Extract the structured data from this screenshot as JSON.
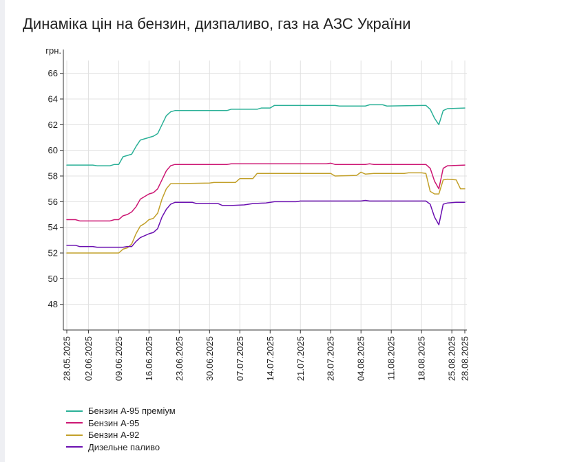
{
  "title": "Динаміка цін на бензин, дизпаливо, газ на АЗС України",
  "chart_data": {
    "type": "line",
    "title": "Динаміка цін на бензин, дизпаливо, газ на АЗС України",
    "ylabel": "грн.",
    "xlabel": "",
    "ylim": [
      46,
      67
    ],
    "yticks": [
      48,
      50,
      52,
      54,
      56,
      58,
      60,
      62,
      64,
      66
    ],
    "grid": true,
    "legend_position": "bottom-left",
    "x_start": "28.05.2025",
    "x_end": "28.08.2025",
    "x_tick_labels": [
      "28.05.2025",
      "02.06.2025",
      "09.06.2025",
      "16.06.2025",
      "23.06.2025",
      "30.06.2025",
      "07.07.2025",
      "14.07.2025",
      "21.07.2025",
      "28.07.2025",
      "04.08.2025",
      "11.08.2025",
      "18.08.2025",
      "25.08.2025",
      "28.08.2025"
    ],
    "series": [
      {
        "name": "Бензин А-95 преміум",
        "color": "#2ab097",
        "points": [
          [
            "28.05.2025",
            58.85
          ],
          [
            "03.06.2025",
            58.85
          ],
          [
            "04.06.2025",
            58.8
          ],
          [
            "07.06.2025",
            58.8
          ],
          [
            "08.06.2025",
            58.9
          ],
          [
            "09.06.2025",
            58.9
          ],
          [
            "10.06.2025",
            59.5
          ],
          [
            "11.06.2025",
            59.6
          ],
          [
            "12.06.2025",
            59.7
          ],
          [
            "13.06.2025",
            60.3
          ],
          [
            "14.06.2025",
            60.8
          ],
          [
            "15.06.2025",
            60.9
          ],
          [
            "16.06.2025",
            61.0
          ],
          [
            "17.06.2025",
            61.1
          ],
          [
            "18.06.2025",
            61.3
          ],
          [
            "19.06.2025",
            62.0
          ],
          [
            "20.06.2025",
            62.7
          ],
          [
            "21.06.2025",
            63.0
          ],
          [
            "22.06.2025",
            63.1
          ],
          [
            "04.07.2025",
            63.1
          ],
          [
            "05.07.2025",
            63.2
          ],
          [
            "11.07.2025",
            63.2
          ],
          [
            "12.07.2025",
            63.3
          ],
          [
            "14.07.2025",
            63.3
          ],
          [
            "15.07.2025",
            63.5
          ],
          [
            "29.07.2025",
            63.5
          ],
          [
            "30.07.2025",
            63.45
          ],
          [
            "05.08.2025",
            63.45
          ],
          [
            "06.08.2025",
            63.55
          ],
          [
            "09.08.2025",
            63.55
          ],
          [
            "10.08.2025",
            63.45
          ],
          [
            "18.08.2025",
            63.5
          ],
          [
            "19.08.2025",
            63.5
          ],
          [
            "20.08.2025",
            63.2
          ],
          [
            "21.08.2025",
            62.5
          ],
          [
            "22.08.2025",
            62.0
          ],
          [
            "23.08.2025",
            63.1
          ],
          [
            "24.08.2025",
            63.25
          ],
          [
            "28.08.2025",
            63.3
          ]
        ]
      },
      {
        "name": "Бензин А-95",
        "color": "#cc1673",
        "points": [
          [
            "28.05.2025",
            54.6
          ],
          [
            "30.05.2025",
            54.6
          ],
          [
            "31.05.2025",
            54.5
          ],
          [
            "07.06.2025",
            54.5
          ],
          [
            "08.06.2025",
            54.6
          ],
          [
            "09.06.2025",
            54.6
          ],
          [
            "10.06.2025",
            54.9
          ],
          [
            "11.06.2025",
            55.0
          ],
          [
            "12.06.2025",
            55.2
          ],
          [
            "13.06.2025",
            55.6
          ],
          [
            "14.06.2025",
            56.2
          ],
          [
            "15.06.2025",
            56.4
          ],
          [
            "16.06.2025",
            56.6
          ],
          [
            "17.06.2025",
            56.7
          ],
          [
            "18.06.2025",
            57.0
          ],
          [
            "19.06.2025",
            57.7
          ],
          [
            "20.06.2025",
            58.4
          ],
          [
            "21.06.2025",
            58.8
          ],
          [
            "22.06.2025",
            58.9
          ],
          [
            "04.07.2025",
            58.9
          ],
          [
            "05.07.2025",
            58.95
          ],
          [
            "27.07.2025",
            58.95
          ],
          [
            "28.07.2025",
            59.0
          ],
          [
            "29.07.2025",
            58.9
          ],
          [
            "05.08.2025",
            58.9
          ],
          [
            "06.08.2025",
            58.95
          ],
          [
            "07.08.2025",
            58.9
          ],
          [
            "15.08.2025",
            58.9
          ],
          [
            "16.08.2025",
            58.9
          ],
          [
            "19.08.2025",
            58.9
          ],
          [
            "20.08.2025",
            58.6
          ],
          [
            "21.08.2025",
            57.6
          ],
          [
            "22.08.2025",
            57.0
          ],
          [
            "23.08.2025",
            58.6
          ],
          [
            "24.08.2025",
            58.8
          ],
          [
            "28.08.2025",
            58.85
          ]
        ]
      },
      {
        "name": "Бензин А-92",
        "color": "#c2a02a",
        "points": [
          [
            "28.05.2025",
            52.0
          ],
          [
            "08.06.2025",
            52.0
          ],
          [
            "09.06.2025",
            52.0
          ],
          [
            "10.06.2025",
            52.3
          ],
          [
            "11.06.2025",
            52.4
          ],
          [
            "12.06.2025",
            52.7
          ],
          [
            "13.06.2025",
            53.5
          ],
          [
            "14.06.2025",
            54.1
          ],
          [
            "15.06.2025",
            54.3
          ],
          [
            "16.06.2025",
            54.6
          ],
          [
            "17.06.2025",
            54.7
          ],
          [
            "18.06.2025",
            55.1
          ],
          [
            "19.06.2025",
            56.2
          ],
          [
            "20.06.2025",
            57.0
          ],
          [
            "21.06.2025",
            57.4
          ],
          [
            "30.06.2025",
            57.45
          ],
          [
            "01.07.2025",
            57.5
          ],
          [
            "06.07.2025",
            57.5
          ],
          [
            "07.07.2025",
            57.8
          ],
          [
            "10.07.2025",
            57.8
          ],
          [
            "11.07.2025",
            58.2
          ],
          [
            "28.07.2025",
            58.2
          ],
          [
            "29.07.2025",
            58.0
          ],
          [
            "03.08.2025",
            58.05
          ],
          [
            "04.08.2025",
            58.3
          ],
          [
            "05.08.2025",
            58.15
          ],
          [
            "07.08.2025",
            58.2
          ],
          [
            "08.08.2025",
            58.2
          ],
          [
            "14.08.2025",
            58.2
          ],
          [
            "15.08.2025",
            58.25
          ],
          [
            "18.08.2025",
            58.25
          ],
          [
            "19.08.2025",
            58.2
          ],
          [
            "20.08.2025",
            56.8
          ],
          [
            "21.08.2025",
            56.6
          ],
          [
            "22.08.2025",
            56.6
          ],
          [
            "23.08.2025",
            57.7
          ],
          [
            "24.08.2025",
            57.75
          ],
          [
            "26.08.2025",
            57.7
          ],
          [
            "27.08.2025",
            57.0
          ],
          [
            "28.08.2025",
            57.0
          ]
        ]
      },
      {
        "name": "Дизельне паливо",
        "color": "#6a0fb0",
        "points": [
          [
            "28.05.2025",
            52.6
          ],
          [
            "30.05.2025",
            52.6
          ],
          [
            "31.05.2025",
            52.5
          ],
          [
            "03.06.2025",
            52.5
          ],
          [
            "04.06.2025",
            52.45
          ],
          [
            "09.06.2025",
            52.45
          ],
          [
            "10.06.2025",
            52.45
          ],
          [
            "11.06.2025",
            52.5
          ],
          [
            "12.06.2025",
            52.5
          ],
          [
            "13.06.2025",
            52.9
          ],
          [
            "14.06.2025",
            53.2
          ],
          [
            "15.06.2025",
            53.35
          ],
          [
            "16.06.2025",
            53.5
          ],
          [
            "17.06.2025",
            53.6
          ],
          [
            "18.06.2025",
            53.9
          ],
          [
            "19.06.2025",
            54.8
          ],
          [
            "20.06.2025",
            55.4
          ],
          [
            "21.06.2025",
            55.8
          ],
          [
            "22.06.2025",
            55.95
          ],
          [
            "26.06.2025",
            55.95
          ],
          [
            "27.06.2025",
            55.85
          ],
          [
            "02.07.2025",
            55.85
          ],
          [
            "03.07.2025",
            55.7
          ],
          [
            "05.07.2025",
            55.7
          ],
          [
            "08.07.2025",
            55.75
          ],
          [
            "10.07.2025",
            55.85
          ],
          [
            "13.07.2025",
            55.9
          ],
          [
            "15.07.2025",
            56.0
          ],
          [
            "20.07.2025",
            56.0
          ],
          [
            "21.07.2025",
            56.05
          ],
          [
            "04.08.2025",
            56.05
          ],
          [
            "05.08.2025",
            56.1
          ],
          [
            "06.08.2025",
            56.05
          ],
          [
            "19.08.2025",
            56.05
          ],
          [
            "20.08.2025",
            55.8
          ],
          [
            "21.08.2025",
            54.8
          ],
          [
            "22.08.2025",
            54.2
          ],
          [
            "23.08.2025",
            55.8
          ],
          [
            "24.08.2025",
            55.9
          ],
          [
            "26.08.2025",
            55.95
          ],
          [
            "28.08.2025",
            55.95
          ]
        ]
      }
    ]
  }
}
